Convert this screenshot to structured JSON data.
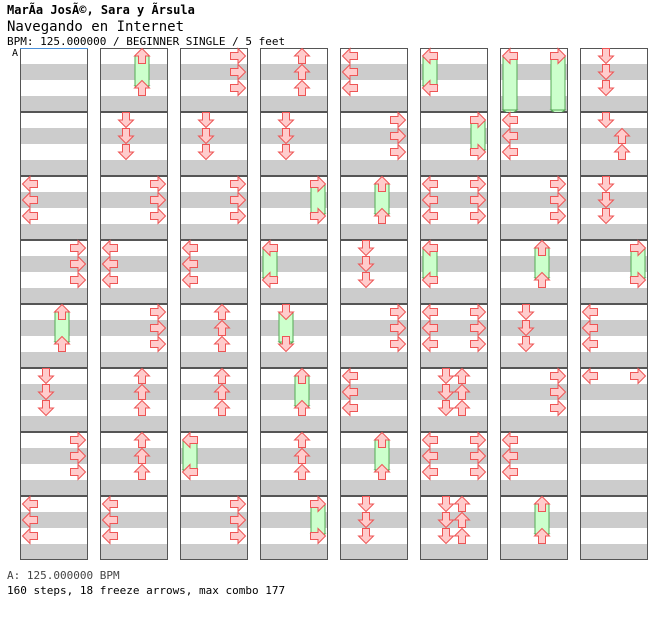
{
  "header": {
    "artist": "MarÃ­a JosÃ©, Sara y Ãrsula",
    "title": "Navegando en Internet",
    "info": "BPM: 125.000000 / BEGINNER SINGLE / 5 feet"
  },
  "bpm_marker": "A",
  "footer": {
    "bpm": "A: 125.000000 BPM",
    "stats": "160 steps, 18 freeze arrows, max combo 177"
  },
  "colors": {
    "stripe": "#cccccc",
    "arrow_fill": "#ffcccc",
    "arrow_stroke": "#ee5555",
    "freeze_fill": "#ccffcc",
    "freeze_stroke": "#55aa55",
    "border": "#555555"
  },
  "chart": {
    "lanes": [
      "left",
      "down",
      "up",
      "right"
    ],
    "measures_per_column": 8,
    "columns": [
      [
        [],
        [],
        [
          {
            "b": 0,
            "l": 0
          },
          {
            "b": 1,
            "l": 0
          },
          {
            "b": 2,
            "l": 0
          }
        ],
        [
          {
            "b": 0,
            "l": 3
          },
          {
            "b": 1,
            "l": 3
          },
          {
            "b": 2,
            "l": 3
          }
        ],
        [
          {
            "b": 0,
            "l": 2,
            "f": 1.5
          },
          {
            "b": 2,
            "l": 2
          }
        ],
        [
          {
            "b": 0,
            "l": 1
          },
          {
            "b": 1,
            "l": 1
          },
          {
            "b": 2,
            "l": 1
          }
        ],
        [
          {
            "b": 0,
            "l": 3
          },
          {
            "b": 1,
            "l": 3
          },
          {
            "b": 2,
            "l": 3
          }
        ],
        [
          {
            "b": 0,
            "l": 0
          },
          {
            "b": 1,
            "l": 0
          },
          {
            "b": 2,
            "l": 0
          }
        ]
      ],
      [
        [
          {
            "b": 0,
            "l": 2,
            "f": 1.5
          },
          {
            "b": 2,
            "l": 2
          }
        ],
        [
          {
            "b": 0,
            "l": 1
          },
          {
            "b": 1,
            "l": 1
          },
          {
            "b": 2,
            "l": 1
          }
        ],
        [
          {
            "b": 0,
            "l": 3
          },
          {
            "b": 1,
            "l": 3
          },
          {
            "b": 2,
            "l": 3
          }
        ],
        [
          {
            "b": 0,
            "l": 0
          },
          {
            "b": 1,
            "l": 0
          },
          {
            "b": 2,
            "l": 0
          }
        ],
        [
          {
            "b": 0,
            "l": 3
          },
          {
            "b": 1,
            "l": 3
          },
          {
            "b": 2,
            "l": 3
          }
        ],
        [
          {
            "b": 0,
            "l": 2
          },
          {
            "b": 1,
            "l": 2
          },
          {
            "b": 2,
            "l": 2
          }
        ],
        [
          {
            "b": 0,
            "l": 2
          },
          {
            "b": 1,
            "l": 2
          },
          {
            "b": 2,
            "l": 2
          }
        ],
        [
          {
            "b": 0,
            "l": 0
          },
          {
            "b": 1,
            "l": 0
          },
          {
            "b": 2,
            "l": 0
          }
        ]
      ],
      [
        [
          {
            "b": 0,
            "l": 3
          },
          {
            "b": 1,
            "l": 3
          },
          {
            "b": 2,
            "l": 3
          }
        ],
        [
          {
            "b": 0,
            "l": 1
          },
          {
            "b": 1,
            "l": 1
          },
          {
            "b": 2,
            "l": 1
          }
        ],
        [
          {
            "b": 0,
            "l": 3
          },
          {
            "b": 1,
            "l": 3
          },
          {
            "b": 2,
            "l": 3
          }
        ],
        [
          {
            "b": 0,
            "l": 0
          },
          {
            "b": 1,
            "l": 0
          },
          {
            "b": 2,
            "l": 0
          }
        ],
        [
          {
            "b": 0,
            "l": 2
          },
          {
            "b": 1,
            "l": 2
          },
          {
            "b": 2,
            "l": 2
          }
        ],
        [
          {
            "b": 0,
            "l": 2
          },
          {
            "b": 1,
            "l": 2
          },
          {
            "b": 2,
            "l": 2
          }
        ],
        [
          {
            "b": 0,
            "l": 0,
            "f": 1.5
          },
          {
            "b": 2,
            "l": 0
          }
        ],
        [
          {
            "b": 0,
            "l": 3
          },
          {
            "b": 1,
            "l": 3
          },
          {
            "b": 2,
            "l": 3
          }
        ]
      ],
      [
        [
          {
            "b": 0,
            "l": 2
          },
          {
            "b": 1,
            "l": 2
          },
          {
            "b": 2,
            "l": 2
          }
        ],
        [
          {
            "b": 0,
            "l": 1
          },
          {
            "b": 1,
            "l": 1
          },
          {
            "b": 2,
            "l": 1
          }
        ],
        [
          {
            "b": 0,
            "l": 3,
            "f": 1.5
          },
          {
            "b": 2,
            "l": 3
          }
        ],
        [
          {
            "b": 0,
            "l": 0,
            "f": 1.5
          },
          {
            "b": 2,
            "l": 0
          }
        ],
        [
          {
            "b": 0,
            "l": 1,
            "f": 1.5
          },
          {
            "b": 2,
            "l": 1
          }
        ],
        [
          {
            "b": 0,
            "l": 2,
            "f": 1.5
          },
          {
            "b": 2,
            "l": 2
          }
        ],
        [
          {
            "b": 0,
            "l": 2
          },
          {
            "b": 1,
            "l": 2
          },
          {
            "b": 2,
            "l": 2
          }
        ],
        [
          {
            "b": 0,
            "l": 3,
            "f": 1.5
          },
          {
            "b": 2,
            "l": 3
          }
        ]
      ],
      [
        [
          {
            "b": 0,
            "l": 0
          },
          {
            "b": 1,
            "l": 0
          },
          {
            "b": 2,
            "l": 0
          }
        ],
        [
          {
            "b": 0,
            "l": 3
          },
          {
            "b": 1,
            "l": 3
          },
          {
            "b": 2,
            "l": 3
          }
        ],
        [
          {
            "b": 0,
            "l": 2,
            "f": 1.5
          },
          {
            "b": 2,
            "l": 2
          }
        ],
        [
          {
            "b": 0,
            "l": 1
          },
          {
            "b": 1,
            "l": 1
          },
          {
            "b": 2,
            "l": 1
          }
        ],
        [
          {
            "b": 0,
            "l": 3
          },
          {
            "b": 1,
            "l": 3
          },
          {
            "b": 2,
            "l": 3
          }
        ],
        [
          {
            "b": 0,
            "l": 0
          },
          {
            "b": 1,
            "l": 0
          },
          {
            "b": 2,
            "l": 0
          }
        ],
        [
          {
            "b": 0,
            "l": 2,
            "f": 1.5
          },
          {
            "b": 2,
            "l": 2
          }
        ],
        [
          {
            "b": 0,
            "l": 1
          },
          {
            "b": 1,
            "l": 1
          },
          {
            "b": 2,
            "l": 1
          }
        ]
      ],
      [
        [
          {
            "b": 0,
            "l": 0,
            "f": 1.5
          },
          {
            "b": 2,
            "l": 0
          }
        ],
        [
          {
            "b": 0,
            "l": 3,
            "f": 1.5
          },
          {
            "b": 2,
            "l": 3
          }
        ],
        [
          {
            "b": 0,
            "l": 0
          },
          {
            "b": 0,
            "l": 3
          },
          {
            "b": 1,
            "l": 0
          },
          {
            "b": 1,
            "l": 3
          },
          {
            "b": 2,
            "l": 0
          },
          {
            "b": 2,
            "l": 3
          }
        ],
        [
          {
            "b": 0,
            "l": 0,
            "f": 1.5
          },
          {
            "b": 2,
            "l": 0
          }
        ],
        [
          {
            "b": 0,
            "l": 0
          },
          {
            "b": 0,
            "l": 3
          },
          {
            "b": 1,
            "l": 0
          },
          {
            "b": 1,
            "l": 3
          },
          {
            "b": 2,
            "l": 0
          },
          {
            "b": 2,
            "l": 3
          }
        ],
        [
          {
            "b": 0,
            "l": 1
          },
          {
            "b": 0,
            "l": 2
          },
          {
            "b": 1,
            "l": 1
          },
          {
            "b": 1,
            "l": 2
          },
          {
            "b": 2,
            "l": 1
          },
          {
            "b": 2,
            "l": 2
          }
        ],
        [
          {
            "b": 0,
            "l": 0
          },
          {
            "b": 0,
            "l": 3
          },
          {
            "b": 1,
            "l": 0
          },
          {
            "b": 1,
            "l": 3
          },
          {
            "b": 2,
            "l": 0
          },
          {
            "b": 2,
            "l": 3
          }
        ],
        [
          {
            "b": 0,
            "l": 1
          },
          {
            "b": 0,
            "l": 2
          },
          {
            "b": 1,
            "l": 1
          },
          {
            "b": 1,
            "l": 2
          },
          {
            "b": 2,
            "l": 1
          },
          {
            "b": 2,
            "l": 2
          }
        ]
      ],
      [
        [
          {
            "b": 0,
            "l": 0,
            "f": 3.0
          },
          {
            "b": 0,
            "l": 3,
            "f": 3.0
          }
        ],
        [
          {
            "b": 0,
            "l": 0
          },
          {
            "b": 1,
            "l": 0
          },
          {
            "b": 2,
            "l": 0
          }
        ],
        [
          {
            "b": 0,
            "l": 3
          },
          {
            "b": 1,
            "l": 3
          },
          {
            "b": 2,
            "l": 3
          }
        ],
        [
          {
            "b": 0,
            "l": 2,
            "f": 1.5
          },
          {
            "b": 2,
            "l": 2
          }
        ],
        [
          {
            "b": 0,
            "l": 1
          },
          {
            "b": 1,
            "l": 1
          },
          {
            "b": 2,
            "l": 1
          }
        ],
        [
          {
            "b": 0,
            "l": 3
          },
          {
            "b": 1,
            "l": 3
          },
          {
            "b": 2,
            "l": 3
          }
        ],
        [
          {
            "b": 0,
            "l": 0
          },
          {
            "b": 1,
            "l": 0
          },
          {
            "b": 2,
            "l": 0
          }
        ],
        [
          {
            "b": 0,
            "l": 2,
            "f": 1.5
          },
          {
            "b": 2,
            "l": 2
          }
        ]
      ],
      [
        [
          {
            "b": 0,
            "l": 1
          },
          {
            "b": 1,
            "l": 1
          },
          {
            "b": 2,
            "l": 1
          }
        ],
        [
          {
            "b": 0,
            "l": 1
          },
          {
            "b": 1,
            "l": 2
          },
          {
            "b": 2,
            "l": 2
          }
        ],
        [
          {
            "b": 0,
            "l": 1
          },
          {
            "b": 1,
            "l": 1
          },
          {
            "b": 2,
            "l": 1
          }
        ],
        [
          {
            "b": 0,
            "l": 3,
            "f": 1.5
          },
          {
            "b": 2,
            "l": 3
          }
        ],
        [
          {
            "b": 0,
            "l": 0
          },
          {
            "b": 1,
            "l": 0
          },
          {
            "b": 2,
            "l": 0
          }
        ],
        [
          {
            "b": 0,
            "l": 0
          },
          {
            "b": 0,
            "l": 3
          }
        ],
        [],
        []
      ]
    ]
  }
}
